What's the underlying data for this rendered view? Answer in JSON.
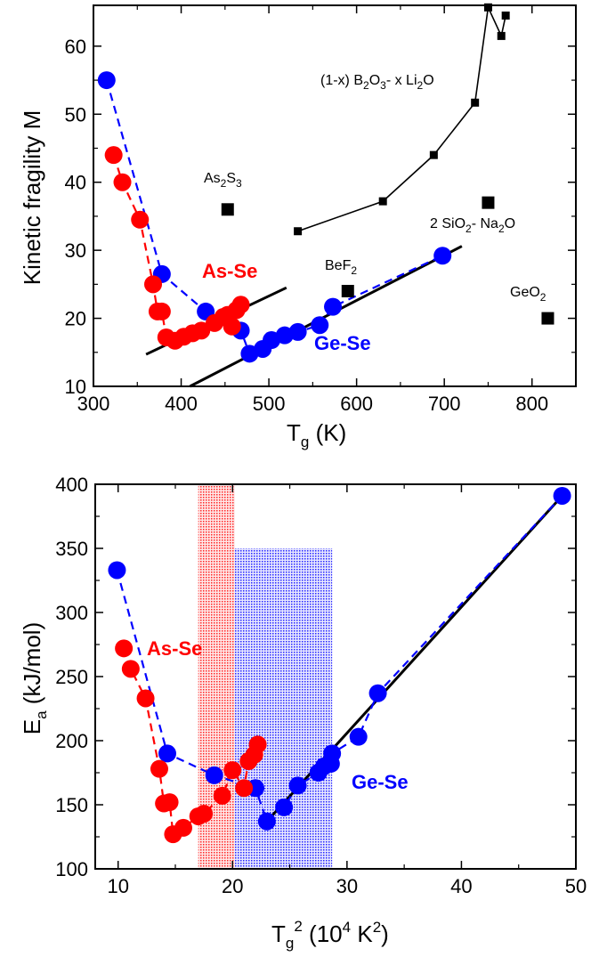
{
  "chart_data": [
    {
      "type": "scatter",
      "xlabel_main": "T",
      "xlabel_sub": "g",
      "xlabel_unit": " (K)",
      "ylabel": "Kinetic fragility M",
      "xlim": [
        300,
        850
      ],
      "ylim": [
        10,
        66
      ],
      "xticks": [
        300,
        400,
        500,
        600,
        700,
        800
      ],
      "yticks": [
        10,
        20,
        30,
        40,
        50,
        60
      ],
      "annotations": {
        "borate_a": "(1-x) B",
        "borate_b": "2",
        "borate_c": "O",
        "borate_d": "3",
        "borate_e": "- x Li",
        "borate_f": "2",
        "borate_g": "O",
        "as2s3_a": "As",
        "as2s3_b": "2",
        "as2s3_c": "S",
        "as2s3_d": "3",
        "bef2_a": "BeF",
        "bef2_b": "2",
        "sio2_a": "2 SiO",
        "sio2_b": "2",
        "sio2_c": "- Na",
        "sio2_d": "2",
        "sio2_e": "O",
        "geo2_a": "GeO",
        "geo2_b": "2",
        "asse": "As-Se",
        "gese": "Ge-Se"
      },
      "series": [
        {
          "key": "ge_se",
          "color": "#0000ff",
          "connect": "dashed",
          "points": [
            [
              315,
              55
            ],
            [
              378,
              26.5
            ],
            [
              428,
              21
            ],
            [
              468,
              18.2
            ],
            [
              478,
              14.8
            ],
            [
              493,
              15.5
            ],
            [
              503,
              16.8
            ],
            [
              518,
              17.5
            ],
            [
              533,
              18
            ],
            [
              558,
              19
            ],
            [
              573,
              21.7
            ],
            [
              698,
              29.2
            ]
          ]
        },
        {
          "key": "as_se",
          "color": "#ff0000",
          "connect": "dashed",
          "points": [
            [
              323,
              44
            ],
            [
              333,
              40
            ],
            [
              353,
              34.5
            ],
            [
              368,
              25
            ],
            [
              373,
              21
            ],
            [
              378,
              21
            ],
            [
              383,
              17.2
            ],
            [
              393,
              16.7
            ],
            [
              403,
              17.3
            ],
            [
              413,
              17.8
            ],
            [
              423,
              18.2
            ],
            [
              438,
              19.3
            ],
            [
              448,
              20.2
            ],
            [
              453,
              20.5
            ],
            [
              458,
              18.8
            ],
            [
              463,
              21.2
            ],
            [
              468,
              22
            ]
          ]
        },
        {
          "key": "borate",
          "color": "#000000",
          "connect": "solid",
          "points": [
            [
              533,
              32.8
            ],
            [
              630,
              37.2
            ],
            [
              688,
              44
            ],
            [
              735,
              51.7
            ],
            [
              750,
              65.7
            ],
            [
              765,
              61.5
            ],
            [
              770,
              64.5
            ]
          ]
        },
        {
          "key": "oxides",
          "color": "#000000",
          "connect": "none",
          "points": [
            [
              453,
              36
            ],
            [
              590,
              24
            ],
            [
              750,
              37
            ],
            [
              818,
              20
            ]
          ]
        }
      ],
      "fit_lines": [
        {
          "x": [
            360,
            520
          ],
          "y": [
            14.7,
            24.5
          ]
        },
        {
          "x": [
            410,
            720
          ],
          "y": [
            10,
            30.6
          ]
        }
      ]
    },
    {
      "type": "scatter",
      "xlabel_main": "T",
      "xlabel_sub": "g",
      "xlabel_sup": "2",
      "xlabel_unit_a": " (10",
      "xlabel_unit_b": "4",
      "xlabel_unit_c": " K",
      "xlabel_unit_d": "2",
      "xlabel_unit_e": ")",
      "ylabel_main": "E",
      "ylabel_sub": "a",
      "ylabel_unit": " (kJ/mol)",
      "xlim": [
        8,
        50
      ],
      "ylim": [
        100,
        400
      ],
      "xticks": [
        10,
        20,
        30,
        40,
        50
      ],
      "yticks": [
        100,
        150,
        200,
        250,
        300,
        350,
        400
      ],
      "annotations": {
        "asse": "As-Se",
        "gese": "Ge-Se"
      },
      "bands": [
        {
          "key": "as_se_window",
          "color": "#ff0000",
          "x": [
            17.0,
            20.2
          ],
          "y": [
            100,
            400
          ]
        },
        {
          "key": "ge_se_window",
          "color": "#0000ff",
          "x": [
            20.2,
            28.7
          ],
          "y": [
            100,
            350
          ]
        }
      ],
      "series": [
        {
          "key": "ge_se",
          "color": "#0000ff",
          "connect": "dashed",
          "points": [
            [
              9.9,
              333
            ],
            [
              14.3,
              190
            ],
            [
              18.4,
              173
            ],
            [
              22.0,
              163
            ],
            [
              23.0,
              137
            ],
            [
              24.5,
              148
            ],
            [
              25.7,
              165
            ],
            [
              27.5,
              175
            ],
            [
              28.0,
              180
            ],
            [
              28.6,
              182
            ],
            [
              28.7,
              190
            ],
            [
              31.0,
              203
            ],
            [
              32.7,
              237
            ],
            [
              48.8,
              391
            ]
          ]
        },
        {
          "key": "as_se",
          "color": "#ff0000",
          "connect": "dashed",
          "points": [
            [
              10.5,
              272
            ],
            [
              11.1,
              256
            ],
            [
              12.4,
              233
            ],
            [
              13.6,
              178
            ],
            [
              14.0,
              151
            ],
            [
              14.5,
              152
            ],
            [
              14.8,
              127
            ],
            [
              15.7,
              132
            ],
            [
              17.0,
              141
            ],
            [
              17.5,
              143
            ],
            [
              19.1,
              157
            ],
            [
              20.0,
              177
            ],
            [
              21.0,
              163
            ],
            [
              21.4,
              184
            ],
            [
              21.9,
              189
            ],
            [
              22.2,
              197
            ]
          ]
        }
      ],
      "fit_lines": [
        {
          "x": [
            23.0,
            48.8
          ],
          "y": [
            137,
            391
          ]
        }
      ]
    }
  ]
}
